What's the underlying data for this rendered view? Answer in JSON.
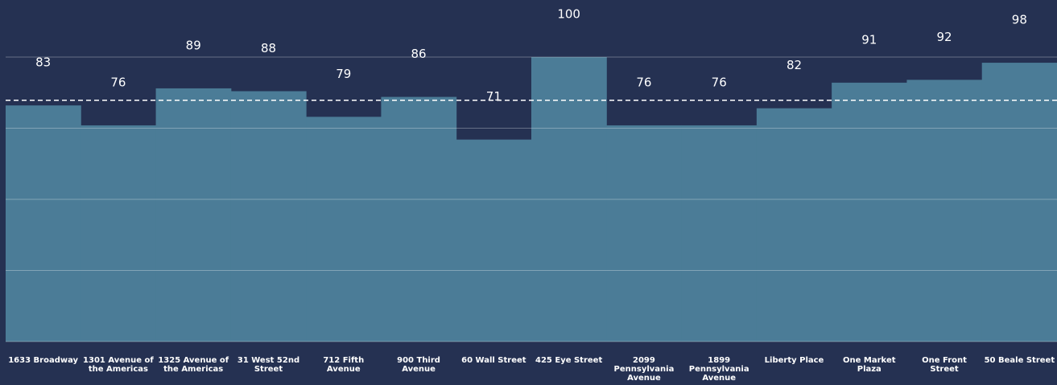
{
  "chart_data": {
    "type": "bar",
    "categories": [
      "1633 Broadway",
      "1301 Avenue of the Americas",
      "1325 Avenue of the Americas",
      "31 West 52nd Street",
      "712 Fifth Avenue",
      "900 Third Avenue",
      "60 Wall Street",
      "425 Eye Street",
      "2099 Pennsylvania Avenue",
      "1899 Pennsylvania Avenue",
      "Liberty Place",
      "One Market Plaza",
      "One Front Street",
      "50 Beale Street"
    ],
    "values": [
      83,
      76,
      89,
      88,
      79,
      86,
      71,
      100,
      76,
      76,
      82,
      91,
      92,
      98
    ],
    "color": "#4b7c97",
    "ylim": [
      0,
      100
    ],
    "yticks": [
      0,
      25,
      50,
      75,
      100
    ],
    "grid": true,
    "reference_line": 84.8
  }
}
